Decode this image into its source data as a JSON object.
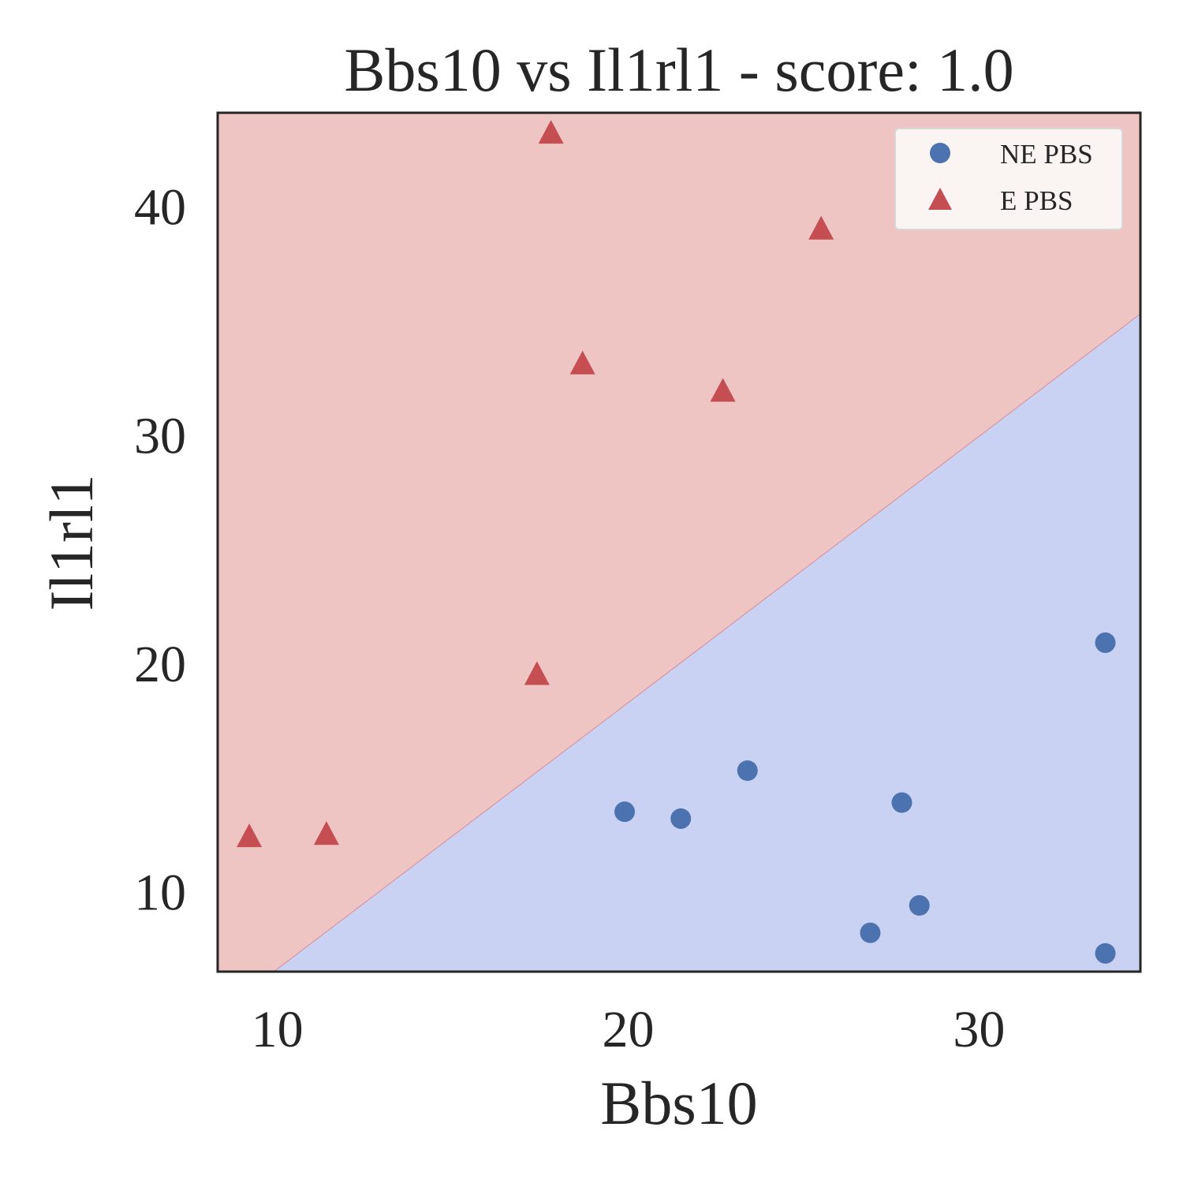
{
  "chart_data": {
    "type": "scatter",
    "title": "Bbs10 vs Il1rl1 - score: 1.0",
    "xlabel": "Bbs10",
    "ylabel": "Il1rl1",
    "xlim": [
      8.3,
      34.6
    ],
    "ylim": [
      6.5,
      44.1
    ],
    "xticks": [
      10,
      20,
      30
    ],
    "yticks": [
      10,
      20,
      30,
      40
    ],
    "grid": false,
    "legend_position": "top-right",
    "decision_boundary": {
      "points": [
        [
          9.9,
          6.5
        ],
        [
          34.6,
          35.3
        ]
      ],
      "colors": {
        "upper": "#efc5c4",
        "lower": "#c9d2f2",
        "line": "#d98c9a"
      }
    },
    "series": [
      {
        "name": "NE PBS",
        "marker": "circle",
        "color": "#4c72b0",
        "points": [
          [
            19.9,
            13.5
          ],
          [
            21.5,
            13.2
          ],
          [
            23.4,
            15.3
          ],
          [
            27.8,
            13.9
          ],
          [
            26.9,
            8.2
          ],
          [
            28.3,
            9.4
          ],
          [
            33.6,
            20.9
          ],
          [
            33.6,
            7.3
          ]
        ]
      },
      {
        "name": "E PBS",
        "marker": "triangle",
        "color": "#c44e52",
        "points": [
          [
            9.2,
            12.4
          ],
          [
            11.4,
            12.5
          ],
          [
            17.4,
            19.5
          ],
          [
            17.8,
            43.2
          ],
          [
            18.7,
            33.1
          ],
          [
            22.7,
            31.9
          ],
          [
            25.5,
            39.0
          ]
        ]
      }
    ]
  }
}
